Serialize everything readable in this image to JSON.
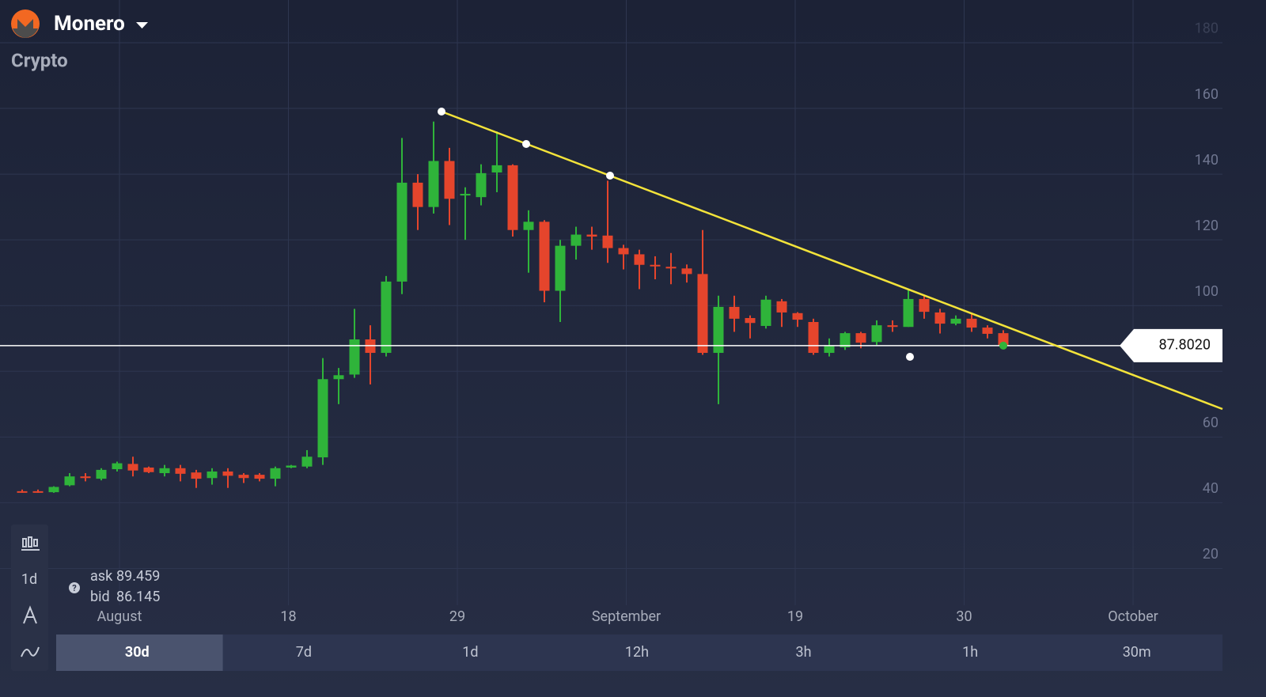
{
  "header": {
    "asset": "Monero",
    "category": "Crypto"
  },
  "chart_data": {
    "type": "candlestick",
    "x_labels": [
      "August",
      "18",
      "29",
      "September",
      "19",
      "30",
      "October"
    ],
    "open": [
      43.5,
      43.5,
      43.2,
      45.3,
      48,
      47.3,
      50.2,
      51.8,
      50.7,
      49,
      50.5,
      49.2,
      47.5,
      49.5,
      48.5,
      48.5,
      47.3,
      50.7,
      51,
      53.8,
      77.6,
      79,
      89.7,
      85.6,
      107.3,
      137.4,
      130,
      144,
      133.5,
      133,
      140.5,
      142.7,
      123,
      125.5,
      104.5,
      118.2,
      121.6,
      121.3,
      117.5,
      115.6,
      112.4,
      111.8,
      111.3,
      109.6,
      85.6,
      99.6,
      96.2,
      93.8,
      101.3,
      97.7,
      95,
      85.6,
      87.3,
      91.6,
      88.9,
      94,
      93.5,
      102,
      97.9,
      94.5,
      96,
      93.3,
      91.6
    ],
    "high": [
      44,
      44,
      45,
      49,
      49,
      50.5,
      52.5,
      54,
      51,
      51.5,
      51.5,
      50,
      50.5,
      50.5,
      49,
      49,
      51,
      51.5,
      56,
      84,
      81,
      99,
      94,
      109,
      151,
      140,
      156,
      148,
      136,
      143,
      153,
      143,
      129,
      126,
      120,
      124,
      124,
      138,
      118.5,
      117,
      115,
      116,
      112.5,
      123,
      103,
      103,
      97,
      103,
      102,
      98,
      96,
      90,
      92,
      92,
      95.5,
      95.5,
      105,
      103,
      99,
      97,
      97.5,
      94,
      92.5
    ],
    "low": [
      43,
      43,
      43,
      45,
      46.5,
      46.8,
      49.5,
      48,
      49,
      48,
      46.5,
      44.5,
      45.5,
      44.5,
      46,
      46.5,
      45,
      50.5,
      50.5,
      51.5,
      70,
      78,
      76,
      84.5,
      103.5,
      123,
      128,
      124.5,
      120,
      130.5,
      134.5,
      121,
      110,
      101,
      95,
      114,
      117,
      113,
      111,
      105,
      108,
      106.5,
      107,
      85,
      70,
      92,
      90,
      93,
      93.5,
      93.5,
      85,
      84.5,
      86.5,
      87,
      88,
      92,
      93.5,
      96,
      91.5,
      94,
      92,
      90,
      87
    ],
    "close": [
      43.2,
      43.2,
      44.8,
      48,
      47.5,
      50,
      52,
      49.8,
      49.3,
      50.5,
      48.8,
      47.3,
      49.5,
      48.2,
      47.5,
      47.3,
      50.5,
      51.3,
      54,
      77.6,
      78.8,
      89.7,
      85.6,
      107.3,
      137.4,
      130,
      144,
      132.5,
      134,
      140.3,
      142.7,
      123,
      125.5,
      104.5,
      118.2,
      121.6,
      121,
      117.5,
      115.6,
      112.4,
      112,
      111.3,
      109.6,
      85.6,
      99.6,
      96,
      94.7,
      101.8,
      97.9,
      95.7,
      85.6,
      87.7,
      91.6,
      88.7,
      94,
      93.5,
      102,
      98.1,
      94.5,
      96,
      93.3,
      91.4,
      87.8
    ],
    "colors": {
      "up": "#2fb43a",
      "down": "#e5452c"
    },
    "ylim": [
      10,
      193
    ],
    "yticks": [
      20,
      40,
      60,
      80,
      100,
      120,
      140,
      160,
      180
    ],
    "grid": true,
    "current_price": {
      "value": 87.802,
      "label": "87.8020"
    }
  },
  "quote": {
    "ask_label": "ask",
    "ask": 89.459,
    "bid_label": "bid",
    "bid": 86.145
  },
  "toolbar": {
    "interval": "1d"
  },
  "periods": [
    "30d",
    "7d",
    "1d",
    "12h",
    "3h",
    "1h",
    "30m"
  ],
  "active_period": "30d"
}
